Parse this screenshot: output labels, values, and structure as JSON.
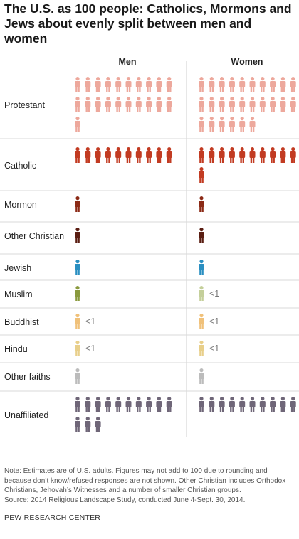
{
  "title": "The U.S. as 100 people: Catholics, Mormons and Jews about evenly split between men and women",
  "columns": {
    "men": "Men",
    "women": "Women"
  },
  "chart_data": {
    "type": "pictogram",
    "title": "The U.S. as 100 people: Catholics, Mormons and Jews about evenly split between men and women",
    "categories": [
      "Protestant",
      "Catholic",
      "Mormon",
      "Other Christian",
      "Jewish",
      "Muslim",
      "Buddhist",
      "Hindu",
      "Other faiths",
      "Unaffiliated"
    ],
    "series": [
      {
        "name": "Men",
        "values": [
          21,
          10,
          1,
          1,
          1,
          1,
          0,
          0,
          1,
          13
        ],
        "labels": [
          "",
          "",
          "",
          "",
          "",
          "",
          "<1",
          "<1",
          "",
          ""
        ]
      },
      {
        "name": "Women",
        "values": [
          26,
          11,
          1,
          1,
          1,
          0,
          0,
          0,
          1,
          10
        ],
        "labels": [
          "",
          "",
          "",
          "",
          "",
          "<1",
          "<1",
          "<1",
          "",
          ""
        ]
      }
    ],
    "colors": {
      "Protestant": "#eda89c",
      "Catholic": "#c23b22",
      "Mormon": "#8b2a16",
      "Other Christian": "#5a1d12",
      "Jewish": "#2a8fc1",
      "Muslim": "#8a9a3e",
      "Muslim_lt1": "#c4cf9a",
      "Buddhist": "#f0c17a",
      "Hindu": "#e8cf8a",
      "Other faiths": "#bcbcbc",
      "Unaffiliated": "#6f6678"
    },
    "icons_per_row": 10
  },
  "notes": "Note: Estimates are of U.S. adults. Figures may not add to 100 due to rounding and because don’t know/refused responses are not shown. Other Christian includes Orthodox Christians, Jehovah’s Witnesses and a number of smaller Christian groups.",
  "source": "Source: 2014 Religious Landscape Study, conducted June 4-Sept. 30, 2014.",
  "org": "PEW RESEARCH CENTER"
}
